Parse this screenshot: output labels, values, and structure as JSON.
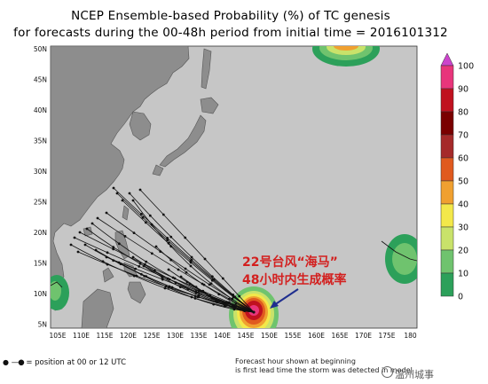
{
  "title": {
    "line1": "NCEP Ensemble-based Probability (%) of TC genesis",
    "line2": "for forecasts during the 00-48h period from initial time = 2016101312"
  },
  "axes": {
    "lat_labels": [
      "50N",
      "45N",
      "40N",
      "35N",
      "30N",
      "25N",
      "20N",
      "15N",
      "10N",
      "5N"
    ],
    "lon_labels": [
      "105E",
      "110E",
      "115E",
      "120E",
      "125E",
      "130E",
      "135E",
      "140E",
      "145E",
      "150E",
      "155E",
      "160E",
      "165E",
      "170E",
      "175E",
      "180"
    ]
  },
  "colorbar": {
    "ticks": [
      "100",
      "90",
      "80",
      "70",
      "60",
      "50",
      "40",
      "30",
      "20",
      "10",
      "0"
    ],
    "colors": [
      "#cc44cc",
      "#e8357b",
      "#c0111f",
      "#7a0000",
      "#a52a2a",
      "#e05a1f",
      "#f0a030",
      "#f3e84a",
      "#c9e26a",
      "#6fc36e",
      "#2ca05a"
    ]
  },
  "annotation": {
    "line1": "22号台风“海马”",
    "line2": "48小时内生成概率"
  },
  "footer": {
    "legend_text": "= position at 00 or 12 UTC",
    "note_line1": "Forecast hour shown at beginning",
    "note_line2": "is first lead time the storm was detected in model"
  },
  "watermark": "温州城事",
  "colors": {
    "ocean": "#c6c6c6",
    "land": "#8d8d8d",
    "track": "#111111",
    "annotation": "#d3201f",
    "arrow": "#1f2e8f"
  }
}
